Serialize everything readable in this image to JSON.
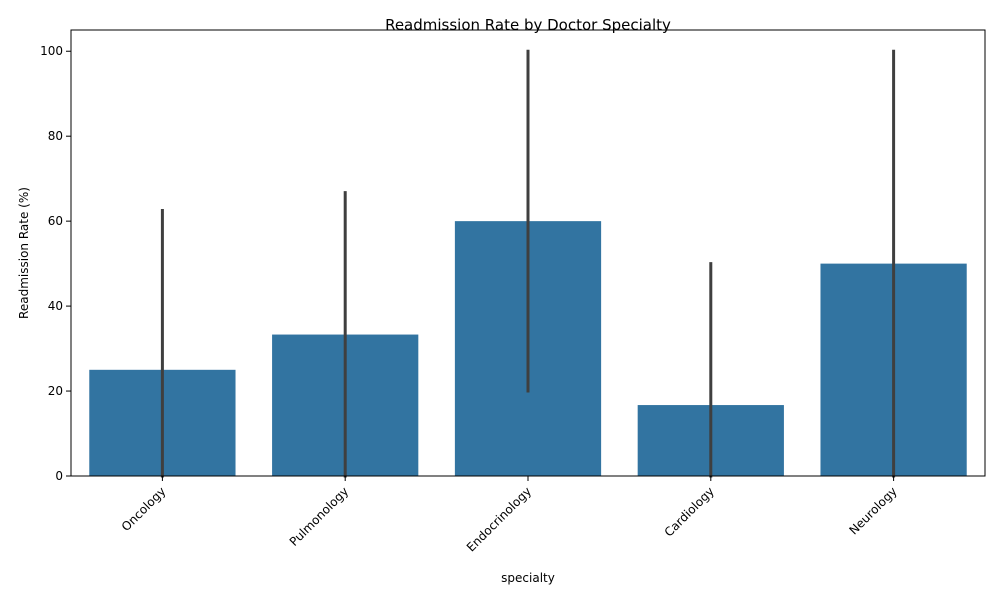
{
  "chart_data": {
    "type": "bar",
    "title": "Readmission Rate by Doctor Specialty",
    "xlabel": "specialty",
    "ylabel": "Readmission Rate (%)",
    "categories": [
      "Oncology",
      "Pulmonology",
      "Endocrinology",
      "Cardiology",
      "Neurology"
    ],
    "values": [
      25,
      33.3,
      60,
      16.7,
      50
    ],
    "error_low": [
      0,
      0,
      20,
      0,
      0
    ],
    "error_high": [
      62.5,
      66.7,
      100,
      50,
      100
    ],
    "ylim": [
      0,
      105
    ],
    "yticks": [
      0,
      20,
      40,
      60,
      80,
      100
    ],
    "bar_color": "#3274a1",
    "error_color": "#3f3f3f",
    "grid": false,
    "legend": "none"
  }
}
